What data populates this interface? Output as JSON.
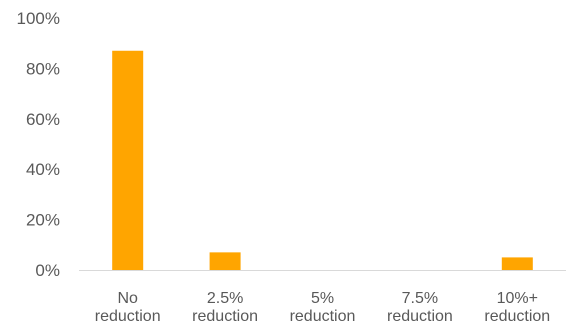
{
  "chart_data": {
    "type": "bar",
    "categories": [
      [
        "No",
        "reduction"
      ],
      [
        "2.5%",
        "reduction"
      ],
      [
        "5%",
        "reduction"
      ],
      [
        "7.5%",
        "reduction"
      ],
      [
        "10%+",
        "reduction"
      ]
    ],
    "values": [
      87,
      7,
      0,
      0,
      5
    ],
    "ylim": [
      0,
      100
    ],
    "yticks": [
      "0%",
      "20%",
      "40%",
      "60%",
      "80%",
      "100%"
    ],
    "ytick_values": [
      0,
      20,
      40,
      60,
      80,
      100
    ],
    "grid": false,
    "legend": "none",
    "colors": {
      "bar": "#FFA500",
      "axis": "#D9D9D9",
      "text": "#595959"
    }
  }
}
